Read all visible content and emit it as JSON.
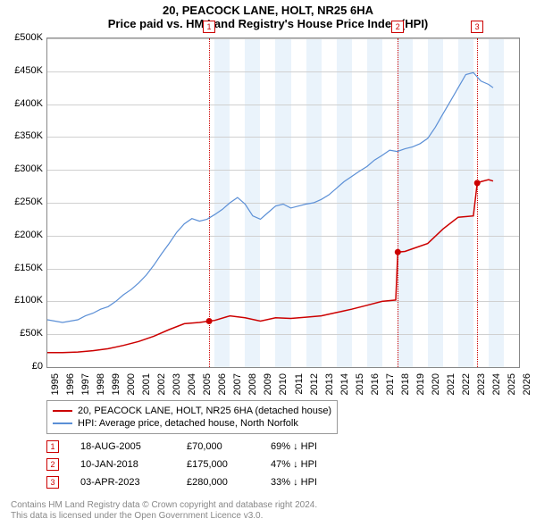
{
  "title": "20, PEACOCK LANE, HOLT, NR25 6HA",
  "subtitle": "Price paid vs. HM Land Registry's House Price Index (HPI)",
  "chart": {
    "type": "line",
    "x_year_start": 1995,
    "x_year_end": 2026,
    "bg_band_color": "#eaf3fb",
    "bg_bands_from": 2006,
    "bg_bands_to": 2024,
    "y_min": 0,
    "y_max": 500000,
    "y_tick_step": 50000,
    "y_tick_labels": [
      "£0",
      "£50K",
      "£100K",
      "£150K",
      "£200K",
      "£250K",
      "£300K",
      "£350K",
      "£400K",
      "£450K",
      "£500K"
    ],
    "grid_color": "#d0d0d0",
    "border_color": "#888888",
    "series": {
      "hpi": {
        "label": "HPI: Average price, detached house, North Norfolk",
        "color": "#5b8fd6",
        "width": 1.2,
        "points": [
          [
            1995.0,
            72000
          ],
          [
            1995.5,
            70000
          ],
          [
            1996.0,
            68000
          ],
          [
            1996.5,
            70000
          ],
          [
            1997.0,
            72000
          ],
          [
            1997.5,
            78000
          ],
          [
            1998.0,
            82000
          ],
          [
            1998.5,
            88000
          ],
          [
            1999.0,
            92000
          ],
          [
            1999.5,
            100000
          ],
          [
            2000.0,
            110000
          ],
          [
            2000.5,
            118000
          ],
          [
            2001.0,
            128000
          ],
          [
            2001.5,
            140000
          ],
          [
            2002.0,
            155000
          ],
          [
            2002.5,
            172000
          ],
          [
            2003.0,
            188000
          ],
          [
            2003.5,
            205000
          ],
          [
            2004.0,
            218000
          ],
          [
            2004.5,
            226000
          ],
          [
            2005.0,
            222000
          ],
          [
            2005.5,
            225000
          ],
          [
            2006.0,
            232000
          ],
          [
            2006.5,
            240000
          ],
          [
            2007.0,
            250000
          ],
          [
            2007.5,
            258000
          ],
          [
            2008.0,
            248000
          ],
          [
            2008.5,
            230000
          ],
          [
            2009.0,
            225000
          ],
          [
            2009.5,
            235000
          ],
          [
            2010.0,
            245000
          ],
          [
            2010.5,
            248000
          ],
          [
            2011.0,
            242000
          ],
          [
            2011.5,
            245000
          ],
          [
            2012.0,
            248000
          ],
          [
            2012.5,
            250000
          ],
          [
            2013.0,
            255000
          ],
          [
            2013.5,
            262000
          ],
          [
            2014.0,
            272000
          ],
          [
            2014.5,
            282000
          ],
          [
            2015.0,
            290000
          ],
          [
            2015.5,
            298000
          ],
          [
            2016.0,
            305000
          ],
          [
            2016.5,
            315000
          ],
          [
            2017.0,
            322000
          ],
          [
            2017.5,
            330000
          ],
          [
            2018.0,
            328000
          ],
          [
            2018.5,
            332000
          ],
          [
            2019.0,
            335000
          ],
          [
            2019.5,
            340000
          ],
          [
            2020.0,
            348000
          ],
          [
            2020.5,
            365000
          ],
          [
            2021.0,
            385000
          ],
          [
            2021.5,
            405000
          ],
          [
            2022.0,
            425000
          ],
          [
            2022.5,
            445000
          ],
          [
            2023.0,
            448000
          ],
          [
            2023.5,
            435000
          ],
          [
            2024.0,
            430000
          ],
          [
            2024.3,
            425000
          ]
        ]
      },
      "property": {
        "label": "20, PEACOCK LANE, HOLT, NR25 6HA (detached house)",
        "color": "#cc0000",
        "width": 1.5,
        "points": [
          [
            1995.0,
            22000
          ],
          [
            1996.0,
            22000
          ],
          [
            1997.0,
            23000
          ],
          [
            1998.0,
            25000
          ],
          [
            1999.0,
            28000
          ],
          [
            2000.0,
            33000
          ],
          [
            2001.0,
            39000
          ],
          [
            2002.0,
            47000
          ],
          [
            2003.0,
            57000
          ],
          [
            2004.0,
            66000
          ],
          [
            2005.0,
            68000
          ],
          [
            2005.63,
            70000
          ],
          [
            2006.0,
            71000
          ],
          [
            2007.0,
            78000
          ],
          [
            2008.0,
            75000
          ],
          [
            2009.0,
            70000
          ],
          [
            2010.0,
            75000
          ],
          [
            2011.0,
            74000
          ],
          [
            2012.0,
            76000
          ],
          [
            2013.0,
            78000
          ],
          [
            2014.0,
            83000
          ],
          [
            2015.0,
            88000
          ],
          [
            2016.0,
            94000
          ],
          [
            2017.0,
            100000
          ],
          [
            2017.9,
            102000
          ],
          [
            2018.03,
            175000
          ],
          [
            2018.5,
            176000
          ],
          [
            2019.0,
            180000
          ],
          [
            2020.0,
            188000
          ],
          [
            2021.0,
            210000
          ],
          [
            2022.0,
            228000
          ],
          [
            2023.0,
            230000
          ],
          [
            2023.25,
            280000
          ],
          [
            2023.5,
            282000
          ],
          [
            2024.0,
            285000
          ],
          [
            2024.3,
            283000
          ]
        ]
      }
    },
    "markers": [
      {
        "n": "1",
        "year": 2005.63,
        "value": 70000
      },
      {
        "n": "2",
        "year": 2018.03,
        "value": 175000
      },
      {
        "n": "3",
        "year": 2023.25,
        "value": 280000
      }
    ]
  },
  "legend": {
    "items": [
      {
        "color": "#cc0000",
        "label": "20, PEACOCK LANE, HOLT, NR25 6HA (detached house)"
      },
      {
        "color": "#5b8fd6",
        "label": "HPI: Average price, detached house, North Norfolk"
      }
    ]
  },
  "transactions": [
    {
      "n": "1",
      "date": "18-AUG-2005",
      "price": "£70,000",
      "diff": "69% ↓ HPI"
    },
    {
      "n": "2",
      "date": "10-JAN-2018",
      "price": "£175,000",
      "diff": "47% ↓ HPI"
    },
    {
      "n": "3",
      "date": "03-APR-2023",
      "price": "£280,000",
      "diff": "33% ↓ HPI"
    }
  ],
  "footer": {
    "line1": "Contains HM Land Registry data © Crown copyright and database right 2024.",
    "line2": "This data is licensed under the Open Government Licence v3.0."
  }
}
